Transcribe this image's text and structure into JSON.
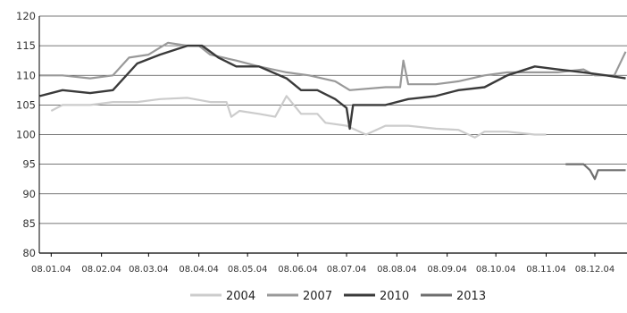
{
  "chart_data": {
    "type": "line",
    "title": "",
    "xlabel": "",
    "ylabel": "",
    "ylim": [
      80,
      120
    ],
    "yticks": [
      80,
      85,
      90,
      95,
      100,
      105,
      110,
      115,
      120
    ],
    "xticks": [
      "08.01.04",
      "08.02.04",
      "08.03.04",
      "08.04.04",
      "08.05.04",
      "08.06.04",
      "08.07.04",
      "08.08.04",
      "08.09.04",
      "08.10.04",
      "08.11.04",
      "08.12.04"
    ],
    "grid": "horizontal",
    "legend": "bottom",
    "colors": {
      "2004": "#cccccc",
      "2007": "#999999",
      "2010": "#3a3a3a",
      "2013": "#6e6e6e"
    },
    "series": [
      {
        "name": "2004",
        "color": "#cccccc",
        "points": [
          [
            "08.01.04",
            104.0
          ],
          [
            "15.01.04",
            105.0
          ],
          [
            "01.02.04",
            105.0
          ],
          [
            "15.02.04",
            105.5
          ],
          [
            "01.03.04",
            105.5
          ],
          [
            "15.03.04",
            106.0
          ],
          [
            "01.04.04",
            106.2
          ],
          [
            "15.04.04",
            105.5
          ],
          [
            "25.04.04",
            105.5
          ],
          [
            "28.04.04",
            103.0
          ],
          [
            "03.05.04",
            104.0
          ],
          [
            "15.05.04",
            103.5
          ],
          [
            "25.05.04",
            103.0
          ],
          [
            "01.06.04",
            106.5
          ],
          [
            "10.06.04",
            103.5
          ],
          [
            "20.06.04",
            103.5
          ],
          [
            "25.06.04",
            102.0
          ],
          [
            "08.07.04",
            101.5
          ],
          [
            "20.07.04",
            100.0
          ],
          [
            "01.08.04",
            101.5
          ],
          [
            "15.08.04",
            101.5
          ],
          [
            "01.09.04",
            101.0
          ],
          [
            "15.09.04",
            100.8
          ],
          [
            "25.09.04",
            99.5
          ],
          [
            "01.10.04",
            100.5
          ],
          [
            "15.10.04",
            100.5
          ],
          [
            "01.11.04",
            100.0
          ],
          [
            "08.11.04",
            100.0
          ]
        ]
      },
      {
        "name": "2007",
        "color": "#999999",
        "points": [
          [
            "01.01.04",
            110.0
          ],
          [
            "15.01.04",
            110.0
          ],
          [
            "01.02.04",
            109.5
          ],
          [
            "15.02.04",
            110.0
          ],
          [
            "25.02.04",
            113.0
          ],
          [
            "08.03.04",
            113.5
          ],
          [
            "20.03.04",
            115.5
          ],
          [
            "01.04.04",
            115.0
          ],
          [
            "08.04.04",
            115.0
          ],
          [
            "15.04.04",
            113.5
          ],
          [
            "01.05.04",
            112.5
          ],
          [
            "15.05.04",
            111.5
          ],
          [
            "01.06.04",
            110.5
          ],
          [
            "15.06.04",
            110.0
          ],
          [
            "01.07.04",
            109.0
          ],
          [
            "10.07.04",
            107.5
          ],
          [
            "01.08.04",
            108.0
          ],
          [
            "10.08.04",
            108.0
          ],
          [
            "12.08.04",
            112.5
          ],
          [
            "15.08.04",
            108.5
          ],
          [
            "01.09.04",
            108.5
          ],
          [
            "15.09.04",
            109.0
          ],
          [
            "01.10.04",
            110.0
          ],
          [
            "15.10.04",
            110.5
          ],
          [
            "01.11.04",
            110.5
          ],
          [
            "15.11.04",
            110.5
          ],
          [
            "01.12.04",
            111.0
          ],
          [
            "08.12.04",
            110.0
          ],
          [
            "20.12.04",
            110.0
          ],
          [
            "27.12.04",
            114.0
          ]
        ]
      },
      {
        "name": "2010",
        "color": "#3a3a3a",
        "points": [
          [
            "01.01.04",
            106.5
          ],
          [
            "15.01.04",
            107.5
          ],
          [
            "01.02.04",
            107.0
          ],
          [
            "15.02.04",
            107.5
          ],
          [
            "01.03.04",
            112.0
          ],
          [
            "15.03.04",
            113.5
          ],
          [
            "01.04.04",
            115.0
          ],
          [
            "10.04.04",
            115.0
          ],
          [
            "20.04.04",
            113.0
          ],
          [
            "01.05.04",
            111.5
          ],
          [
            "15.05.04",
            111.5
          ],
          [
            "01.06.04",
            109.5
          ],
          [
            "10.06.04",
            107.5
          ],
          [
            "20.06.04",
            107.5
          ],
          [
            "01.07.04",
            106.0
          ],
          [
            "08.07.04",
            104.5
          ],
          [
            "10.07.04",
            101.0
          ],
          [
            "12.07.04",
            105.0
          ],
          [
            "01.08.04",
            105.0
          ],
          [
            "15.08.04",
            106.0
          ],
          [
            "01.09.04",
            106.5
          ],
          [
            "15.09.04",
            107.5
          ],
          [
            "01.10.04",
            108.0
          ],
          [
            "15.10.04",
            110.0
          ],
          [
            "01.11.04",
            111.5
          ],
          [
            "15.11.04",
            111.0
          ],
          [
            "01.12.04",
            110.5
          ],
          [
            "15.12.04",
            110.0
          ],
          [
            "27.12.04",
            109.5
          ]
        ]
      },
      {
        "name": "2013",
        "color": "#6e6e6e",
        "points": [
          [
            "20.11.04",
            95.0
          ],
          [
            "01.12.04",
            95.0
          ],
          [
            "05.12.04",
            94.0
          ],
          [
            "08.12.04",
            92.5
          ],
          [
            "10.12.04",
            94.0
          ],
          [
            "15.12.04",
            94.0
          ],
          [
            "27.12.04",
            94.0
          ]
        ]
      }
    ]
  }
}
